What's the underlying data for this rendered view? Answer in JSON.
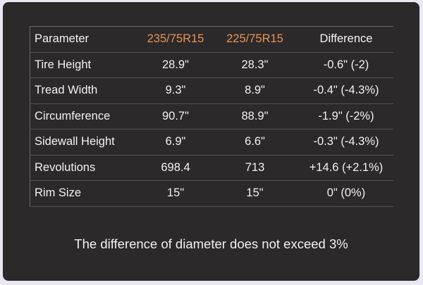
{
  "colors": {
    "accent": "#e8935a",
    "card_bg": "#2b2929",
    "page_bg": "#e9e7f1"
  },
  "table": {
    "headers": [
      "Parameter",
      "235/75R15",
      "225/75R15",
      "Difference"
    ],
    "rows": [
      [
        "Tire Height",
        "28.9\"",
        "28.3\"",
        "-0.6\" (-2)"
      ],
      [
        "Tread Width",
        "9.3\"",
        "8.9\"",
        "-0.4\" (-4.3%)"
      ],
      [
        "Circumference",
        "90.7\"",
        "88.9\"",
        "-1.9\" (-2%)"
      ],
      [
        "Sidewall Height",
        "6.9\"",
        "6.6\"",
        "-0.3\" (-4.3%)"
      ],
      [
        "Revolutions",
        "698.4",
        "713",
        "+14.6 (+2.1%)"
      ],
      [
        "Rim Size",
        "15\"",
        "15\"",
        "0\" (0%)"
      ]
    ]
  },
  "note": "The difference of diameter does not exceed 3%"
}
